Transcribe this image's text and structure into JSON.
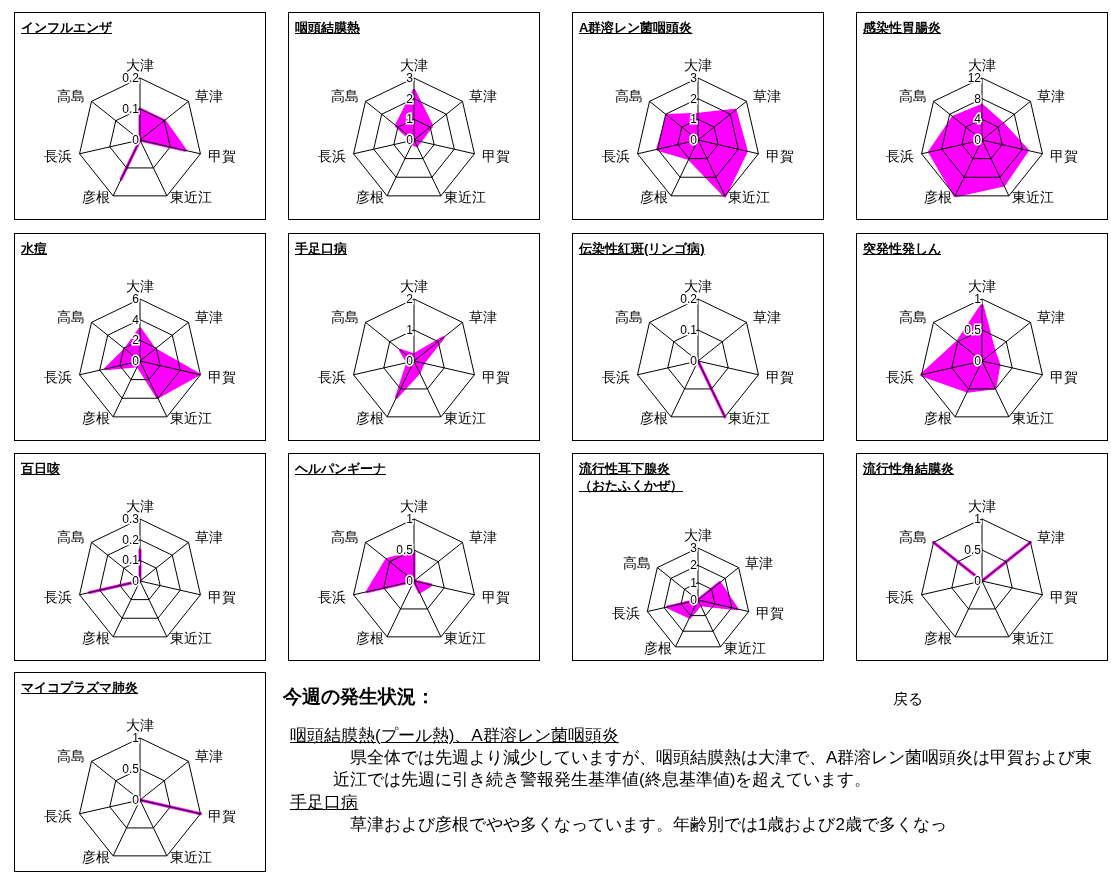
{
  "chart_data": [
    {
      "type": "radar",
      "title": "インフルエンザ",
      "categories": [
        "大津",
        "草津",
        "甲賀",
        "東近江",
        "彦根",
        "長浜",
        "高島"
      ],
      "ylim": [
        0,
        0.2
      ],
      "yticks": [
        0,
        0.1,
        0.2
      ],
      "grid": true,
      "series": [
        {
          "color": "#ff00ff",
          "values": [
            0.1,
            0.1,
            0.15,
            0,
            0.14,
            0,
            0
          ]
        }
      ]
    },
    {
      "type": "radar",
      "title": "咽頭結膜熱",
      "categories": [
        "大津",
        "草津",
        "甲賀",
        "東近江",
        "彦根",
        "長浜",
        "高島"
      ],
      "ylim": [
        0,
        3
      ],
      "yticks": [
        0,
        1,
        2,
        3
      ],
      "grid": true,
      "series": [
        {
          "color": "#ff00ff",
          "values": [
            2.4,
            1.1,
            0.3,
            0.3,
            0.2,
            0.1,
            1.1
          ]
        }
      ]
    },
    {
      "type": "radar",
      "title": "A群溶レン菌咽頭炎",
      "categories": [
        "大津",
        "草津",
        "甲賀",
        "東近江",
        "彦根",
        "長浜",
        "高島"
      ],
      "ylim": [
        0,
        3
      ],
      "yticks": [
        0,
        1,
        2,
        3
      ],
      "grid": true,
      "series": [
        {
          "color": "#ff00ff",
          "values": [
            1.25,
            2.3,
            2.4,
            3,
            1,
            2,
            1.9
          ]
        }
      ]
    },
    {
      "type": "radar",
      "title": "感染性胃腸炎",
      "categories": [
        "大津",
        "草津",
        "甲賀",
        "東近江",
        "彦根",
        "長浜",
        "高島"
      ],
      "ylim": [
        0,
        12
      ],
      "yticks": [
        0,
        4,
        8,
        12
      ],
      "grid": true,
      "series": [
        {
          "color": "#ff00ff",
          "values": [
            6.7,
            5.1,
            9,
            9.7,
            12,
            10.4,
            7.1
          ]
        }
      ]
    },
    {
      "type": "radar",
      "title": "水痘",
      "categories": [
        "大津",
        "草津",
        "甲賀",
        "東近江",
        "彦根",
        "長浜",
        "高島"
      ],
      "ylim": [
        0,
        6
      ],
      "yticks": [
        0,
        2,
        4,
        6
      ],
      "grid": true,
      "series": [
        {
          "color": "#ff00ff",
          "values": [
            3.1,
            1.8,
            5.8,
            3.9,
            0.5,
            3.4,
            1.8
          ]
        }
      ]
    },
    {
      "type": "radar",
      "title": "手足口病",
      "categories": [
        "大津",
        "草津",
        "甲賀",
        "東近江",
        "彦根",
        "長浜",
        "高島"
      ],
      "ylim": [
        0,
        2
      ],
      "yticks": [
        0,
        1,
        2
      ],
      "grid": true,
      "series": [
        {
          "color": "#ff00ff",
          "values": [
            0.2,
            1.2,
            0.3,
            0.4,
            1.3,
            0.2,
            0.55
          ]
        }
      ]
    },
    {
      "type": "radar",
      "title": "伝染性紅斑(リンゴ病)",
      "categories": [
        "大津",
        "草津",
        "甲賀",
        "東近江",
        "彦根",
        "長浜",
        "高島"
      ],
      "ylim": [
        0,
        0.2
      ],
      "yticks": [
        0,
        0.1,
        0.2
      ],
      "grid": true,
      "series": [
        {
          "color": "#ff00ff",
          "values": [
            0,
            0,
            0,
            0.2,
            0,
            0,
            0
          ]
        }
      ]
    },
    {
      "type": "radar",
      "title": "突発性発しん",
      "categories": [
        "大津",
        "草津",
        "甲賀",
        "東近江",
        "彦根",
        "長浜",
        "高島"
      ],
      "ylim": [
        0,
        1
      ],
      "yticks": [
        0,
        0.5,
        1
      ],
      "grid": true,
      "series": [
        {
          "color": "#ff00ff",
          "values": [
            0.9,
            0.25,
            0.28,
            0.48,
            0.54,
            1,
            0.5
          ]
        }
      ]
    },
    {
      "type": "radar",
      "title": "百日咳",
      "categories": [
        "大津",
        "草津",
        "甲賀",
        "東近江",
        "彦根",
        "長浜",
        "高島"
      ],
      "ylim": [
        0,
        0.3
      ],
      "yticks": [
        0,
        0.1,
        0.2,
        0.3
      ],
      "grid": true,
      "series": [
        {
          "color": "#ff00ff",
          "values": [
            0.15,
            0,
            0,
            0,
            0,
            0.25,
            0
          ]
        }
      ]
    },
    {
      "type": "radar",
      "title": "ヘルパンギーナ",
      "categories": [
        "大津",
        "草津",
        "甲賀",
        "東近江",
        "彦根",
        "長浜",
        "高島"
      ],
      "ylim": [
        0,
        1
      ],
      "yticks": [
        0,
        0.5,
        1
      ],
      "grid": true,
      "series": [
        {
          "color": "#ff00ff",
          "values": [
            0.46,
            0,
            0.28,
            0.2,
            0,
            0.77,
            0.56
          ]
        }
      ]
    },
    {
      "type": "radar",
      "title": "流行性耳下腺炎（おたふくかぜ）",
      "categories": [
        "大津",
        "草津",
        "甲賀",
        "東近江",
        "彦根",
        "長浜",
        "高島"
      ],
      "ylim": [
        0,
        3
      ],
      "yticks": [
        0,
        1,
        2,
        3
      ],
      "grid": true,
      "series": [
        {
          "color": "#ff00ff",
          "values": [
            0,
            1.6,
            2.3,
            0.3,
            1.1,
            1.8,
            0
          ]
        }
      ]
    },
    {
      "type": "radar",
      "title": "流行性角結膜炎",
      "categories": [
        "大津",
        "草津",
        "甲賀",
        "東近江",
        "彦根",
        "長浜",
        "高島"
      ],
      "ylim": [
        0,
        1
      ],
      "yticks": [
        0,
        0.5,
        1
      ],
      "grid": true,
      "series": [
        {
          "color": "#ff00ff",
          "values": [
            0,
            1,
            0,
            0,
            0,
            0,
            1
          ]
        }
      ]
    },
    {
      "type": "radar",
      "title": "マイコプラズマ肺炎",
      "categories": [
        "大津",
        "草津",
        "甲賀",
        "東近江",
        "彦根",
        "長浜",
        "高島"
      ],
      "ylim": [
        0,
        1
      ],
      "yticks": [
        0,
        0.5,
        1
      ],
      "grid": true,
      "series": [
        {
          "color": "#ff00ff",
          "values": [
            0,
            0,
            1,
            0,
            0,
            0,
            0
          ]
        }
      ]
    },
    {
      "type": "other",
      "title": "今週の発生状況：",
      "annotations": [
        "戻る",
        "咽頭結膜熱(プール熱)、A群溶レン菌咽頭炎",
        "県全体では先週より減少していますが、咽頭結膜熱は大津で、A群溶レン菌咽頭炎は甲賀および東近江では先週に引き続き警報発生基準値(終息基準値)を超えています。",
        "手足口病",
        "草津および彦根でやや多くなっています。年齢別では1歳および2歳で多くなっ"
      ]
    }
  ]
}
